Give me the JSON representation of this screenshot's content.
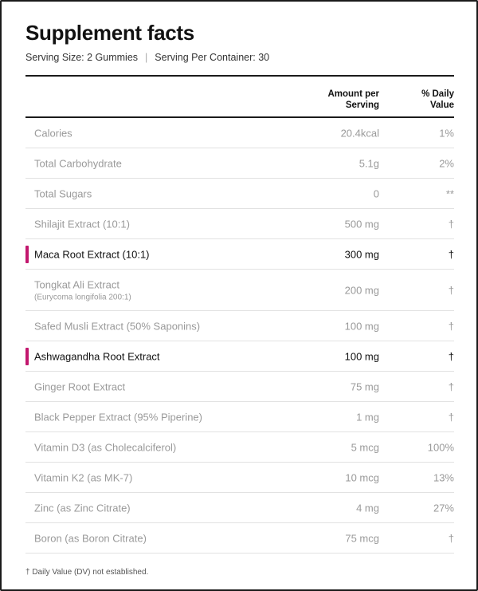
{
  "title": "Supplement facts",
  "serving": {
    "size": "Serving Size: 2 Gummies",
    "separator": "|",
    "per_container": "Serving Per Container: 30"
  },
  "table": {
    "headers": {
      "amount_line1": "Amount per",
      "amount_line2": "Serving",
      "dv_line1": "% Daily",
      "dv_line2": "Value"
    },
    "rows": [
      {
        "name": "Calories",
        "sub": "",
        "amount": "20.4kcal",
        "dv": "1%",
        "highlight": false
      },
      {
        "name": "Total Carbohydrate",
        "sub": "",
        "amount": "5.1g",
        "dv": "2%",
        "highlight": false
      },
      {
        "name": "Total Sugars",
        "sub": "",
        "amount": "0",
        "dv": "**",
        "highlight": false
      },
      {
        "name": "Shilajit Extract (10:1)",
        "sub": "",
        "amount": "500 mg",
        "dv": "†",
        "highlight": false
      },
      {
        "name": "Maca Root Extract (10:1)",
        "sub": "",
        "amount": "300 mg",
        "dv": "†",
        "highlight": true
      },
      {
        "name": "Tongkat Ali Extract",
        "sub": "(Eurycoma longifolia 200:1)",
        "amount": "200 mg",
        "dv": "†",
        "highlight": false
      },
      {
        "name": "Safed Musli Extract (50% Saponins)",
        "sub": "",
        "amount": "100 mg",
        "dv": "†",
        "highlight": false
      },
      {
        "name": "Ashwagandha Root Extract",
        "sub": "",
        "amount": "100 mg",
        "dv": "†",
        "highlight": true
      },
      {
        "name": "Ginger Root Extract",
        "sub": "",
        "amount": "75 mg",
        "dv": "†",
        "highlight": false
      },
      {
        "name": "Black Pepper Extract (95% Piperine)",
        "sub": "",
        "amount": "1 mg",
        "dv": "†",
        "highlight": false
      },
      {
        "name": "Vitamin D3 (as Cholecalciferol)",
        "sub": "",
        "amount": "5 mcg",
        "dv": "100%",
        "highlight": false
      },
      {
        "name": "Vitamin K2 (as MK-7)",
        "sub": "",
        "amount": "10 mcg",
        "dv": "13%",
        "highlight": false
      },
      {
        "name": "Zinc (as Zinc Citrate)",
        "sub": "",
        "amount": "4 mg",
        "dv": "27%",
        "highlight": false
      },
      {
        "name": "Boron (as Boron Citrate)",
        "sub": "",
        "amount": "75 mcg",
        "dv": "†",
        "highlight": false
      }
    ]
  },
  "footnote": "† Daily Value (DV) not established.",
  "colors": {
    "highlight_marker": "#c2176e",
    "muted_text": "#9a9a9a",
    "rule": "#1b1b1b"
  }
}
